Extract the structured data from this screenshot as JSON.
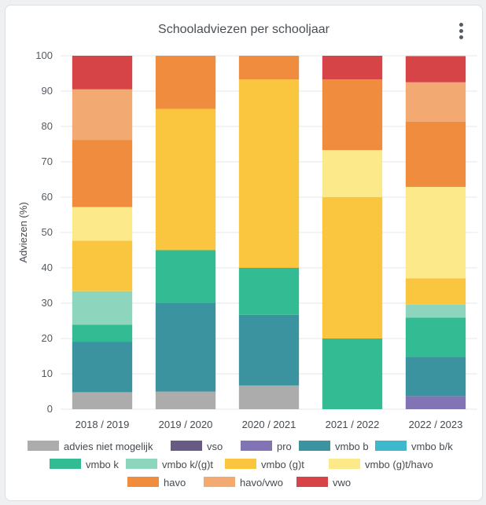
{
  "chart_data": {
    "type": "bar",
    "stacked": true,
    "title": "Schooladviezen per schooljaar",
    "ylabel": "Adviezen (%)",
    "xlabel": "",
    "ylim": [
      0,
      100
    ],
    "yticks": [
      0,
      10,
      20,
      30,
      40,
      50,
      60,
      70,
      80,
      90,
      100
    ],
    "grid": true,
    "legend_position": "bottom",
    "categories": [
      "2018 / 2019",
      "2019 / 2020",
      "2020 / 2021",
      "2021 / 2022",
      "2022 / 2023"
    ],
    "series": [
      {
        "name": "advies niet mogelijk",
        "color": "#acacac",
        "values": [
          4.8,
          5,
          6.7,
          0,
          0
        ]
      },
      {
        "name": "vso",
        "color": "#675b84",
        "values": [
          0,
          0,
          0,
          0,
          0
        ]
      },
      {
        "name": "pro",
        "color": "#8173b4",
        "values": [
          0,
          0,
          0,
          0,
          3.7
        ]
      },
      {
        "name": "vmbo b",
        "color": "#3b939f",
        "values": [
          14.3,
          25,
          20,
          0,
          11.1
        ]
      },
      {
        "name": "vmbo b/k",
        "color": "#3db9cb",
        "values": [
          0,
          0,
          0,
          0,
          0
        ]
      },
      {
        "name": "vmbo k",
        "color": "#33bb94",
        "values": [
          4.8,
          15,
          13.3,
          20,
          11.1
        ]
      },
      {
        "name": "vmbo k/(g)t",
        "color": "#8dd5bd",
        "values": [
          9.5,
          0,
          0,
          0,
          3.7
        ]
      },
      {
        "name": "vmbo (g)t",
        "color": "#fac640",
        "values": [
          14.3,
          40,
          53.3,
          40,
          7.4
        ]
      },
      {
        "name": "vmbo (g)t/havo",
        "color": "#fce98a",
        "values": [
          9.5,
          0,
          0,
          13.3,
          25.9
        ]
      },
      {
        "name": "havo",
        "color": "#ef8c3d",
        "values": [
          19,
          15,
          6.7,
          20,
          18.5
        ]
      },
      {
        "name": "havo/vwo",
        "color": "#f2a972",
        "values": [
          14.3,
          0,
          0,
          0,
          11.1
        ]
      },
      {
        "name": "vwo",
        "color": "#d74447",
        "values": [
          9.5,
          0,
          0,
          6.7,
          7.4
        ]
      }
    ]
  }
}
